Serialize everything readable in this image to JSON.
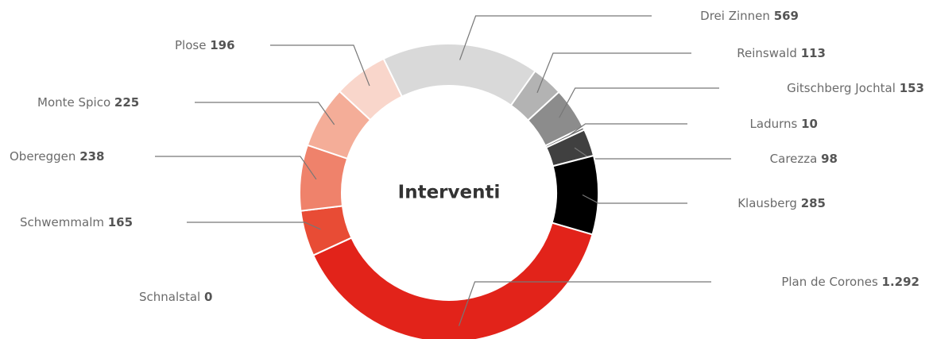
{
  "chart_data": {
    "type": "donut",
    "title": "Interventi",
    "categories": [
      "Drei Zinnen",
      "Reinswald",
      "Gitschberg Jochtal",
      "Ladurns",
      "Carezza",
      "Klausberg",
      "Plan de Corones",
      "Schnalstal",
      "Schwemmalm",
      "Obereggen",
      "Monte Spico",
      "Plose"
    ],
    "values": [
      569,
      113,
      153,
      10,
      98,
      285,
      1292,
      0,
      165,
      238,
      225,
      196
    ],
    "value_labels": [
      "569",
      "113",
      "153",
      "10",
      "98",
      "285",
      "1.292",
      "0",
      "165",
      "238",
      "225",
      "196"
    ],
    "colors": [
      "#d9d9d9",
      "#b3b3b3",
      "#8c8c8c",
      "#666666",
      "#404040",
      "#000000",
      "#e2231a",
      "#e2231a",
      "#e84c35",
      "#ef826b",
      "#f4ad98",
      "#f9d6cb"
    ]
  }
}
